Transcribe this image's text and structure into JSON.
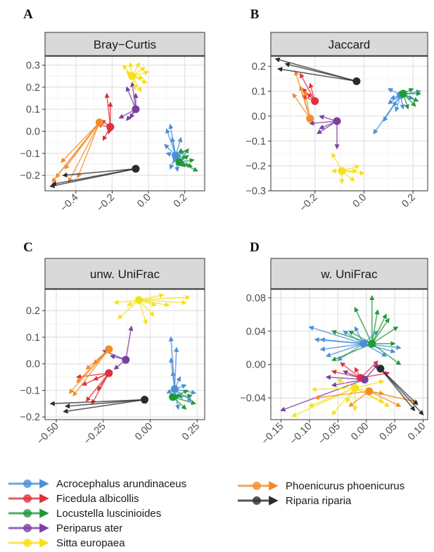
{
  "panels": [
    {
      "letter": "A",
      "strip": "Bray−Curtis",
      "xticks": [
        "−0.4",
        "−0.2",
        "0.0",
        "0.2"
      ],
      "yticks": [
        "0.3",
        "0.2",
        "0.1",
        "0.0",
        "−0.1",
        "−0.2"
      ]
    },
    {
      "letter": "B",
      "strip": "Jaccard",
      "xticks": [
        "−0.2",
        "0.0",
        "0.2"
      ],
      "yticks": [
        "0.2",
        "0.1",
        "0.0",
        "−0.1",
        "−0.2",
        "−0.3"
      ]
    },
    {
      "letter": "C",
      "strip": "unw. UniFrac",
      "xticks": [
        "−0.50",
        "−0.25",
        "0.00",
        "0.25"
      ],
      "yticks": [
        "0.2",
        "0.1",
        "0.0",
        "−0.1",
        "−0.2"
      ]
    },
    {
      "letter": "D",
      "strip": "w. UniFrac",
      "xticks": [
        "−0.15",
        "−0.10",
        "−0.05",
        "0.00",
        "0.05",
        "0.10"
      ],
      "yticks": [
        "0.08",
        "0.04",
        "0.00",
        "−0.04"
      ]
    }
  ],
  "legend": [
    {
      "name": "Acrocephalus arundinaceus",
      "color": "#4a90d9"
    },
    {
      "name": "Ficedula albicollis",
      "color": "#e0303a"
    },
    {
      "name": "Locustella luscinioides",
      "color": "#1f9a3a"
    },
    {
      "name": "Periparus ater",
      "color": "#7b3fa0"
    },
    {
      "name": "Sitta europaea",
      "color": "#f5e01a"
    },
    {
      "name": "Phoenicurus phoenicurus",
      "color": "#f28c28"
    },
    {
      "name": "Riparia riparia",
      "color": "#2b2b2b"
    }
  ],
  "chart_data": [
    {
      "type": "scatter",
      "title": "Bray−Curtis",
      "xlim": [
        -0.57,
        0.31
      ],
      "ylim": [
        -0.27,
        0.34
      ],
      "grid": true,
      "series": [
        {
          "name": "Acrocephalus arundinaceus",
          "centroid": [
            0.15,
            -0.11
          ],
          "ends": [
            [
              0.1,
              0.01
            ],
            [
              0.12,
              0.03
            ],
            [
              0.13,
              -0.03
            ],
            [
              0.09,
              -0.06
            ],
            [
              0.1,
              -0.1
            ],
            [
              0.12,
              -0.17
            ],
            [
              0.16,
              -0.18
            ],
            [
              0.2,
              -0.09
            ],
            [
              0.18,
              -0.03
            ],
            [
              0.21,
              -0.12
            ],
            [
              0.22,
              -0.16
            ],
            [
              0.14,
              -0.14
            ]
          ]
        },
        {
          "name": "Ficedula albicollis",
          "centroid": [
            -0.21,
            0.02
          ],
          "ends": [
            [
              -0.23,
              0.17
            ],
            [
              -0.21,
              0.13
            ],
            [
              -0.28,
              0.03
            ],
            [
              -0.25,
              -0.04
            ],
            [
              -0.22,
              -0.01
            ],
            [
              -0.26,
              0.05
            ]
          ]
        },
        {
          "name": "Locustella luscinioides",
          "centroid": [
            0.17,
            -0.14
          ],
          "ends": [
            [
              0.22,
              -0.08
            ],
            [
              0.25,
              -0.13
            ],
            [
              0.27,
              -0.18
            ],
            [
              0.2,
              -0.16
            ],
            [
              0.22,
              -0.11
            ],
            [
              0.18,
              -0.08
            ],
            [
              0.24,
              -0.16
            ]
          ]
        },
        {
          "name": "Periparus ater",
          "centroid": [
            -0.07,
            0.1
          ],
          "ends": [
            [
              -0.12,
              0.2
            ],
            [
              -0.09,
              0.22
            ],
            [
              -0.07,
              0.17
            ],
            [
              -0.12,
              0.05
            ],
            [
              -0.16,
              0.06
            ],
            [
              -0.1,
              0.06
            ]
          ]
        },
        {
          "name": "Sitta europaea",
          "centroid": [
            -0.09,
            0.25
          ],
          "ends": [
            [
              -0.02,
              0.29
            ],
            [
              0.0,
              0.27
            ],
            [
              -0.01,
              0.22
            ],
            [
              -0.04,
              0.18
            ],
            [
              -0.07,
              0.19
            ],
            [
              -0.12,
              0.27
            ],
            [
              -0.14,
              0.3
            ],
            [
              -0.1,
              0.31
            ],
            [
              -0.05,
              0.31
            ],
            [
              -0.03,
              0.24
            ]
          ]
        },
        {
          "name": "Phoenicurus phoenicurus",
          "centroid": [
            -0.27,
            0.04
          ],
          "ends": [
            [
              -0.53,
              -0.23
            ],
            [
              -0.51,
              -0.21
            ],
            [
              -0.46,
              -0.17
            ],
            [
              -0.44,
              -0.23
            ],
            [
              -0.39,
              -0.21
            ],
            [
              -0.48,
              -0.14
            ]
          ]
        },
        {
          "name": "Riparia riparia",
          "centroid": [
            -0.07,
            -0.17
          ],
          "ends": [
            [
              -0.54,
              -0.25
            ],
            [
              -0.53,
              -0.24
            ],
            [
              -0.47,
              -0.2
            ]
          ]
        }
      ]
    },
    {
      "type": "scatter",
      "title": "Jaccard",
      "xlim": [
        -0.38,
        0.26
      ],
      "ylim": [
        -0.3,
        0.24
      ],
      "grid": true,
      "series": [
        {
          "name": "Acrocephalus arundinaceus",
          "centroid": [
            0.15,
            0.085
          ],
          "ends": [
            [
              0.1,
              0.05
            ],
            [
              0.11,
              0.07
            ],
            [
              0.08,
              -0.02
            ],
            [
              0.04,
              -0.07
            ],
            [
              0.1,
              0.11
            ],
            [
              0.13,
              0.02
            ],
            [
              0.2,
              0.07
            ],
            [
              0.23,
              0.1
            ],
            [
              0.16,
              0.03
            ],
            [
              0.12,
              0.04
            ]
          ]
        },
        {
          "name": "Ficedula albicollis",
          "centroid": [
            -0.2,
            0.06
          ],
          "ends": [
            [
              -0.26,
              0.17
            ],
            [
              -0.22,
              0.13
            ],
            [
              -0.25,
              0.11
            ],
            [
              -0.23,
              0.09
            ],
            [
              -0.25,
              0.08
            ]
          ]
        },
        {
          "name": "Locustella luscinioides",
          "centroid": [
            0.16,
            0.09
          ],
          "ends": [
            [
              0.21,
              0.04
            ],
            [
              0.23,
              0.09
            ],
            [
              0.2,
              0.11
            ],
            [
              0.18,
              0.03
            ],
            [
              0.22,
              0.06
            ]
          ]
        },
        {
          "name": "Periparus ater",
          "centroid": [
            -0.11,
            -0.02
          ],
          "ends": [
            [
              -0.11,
              -0.13
            ],
            [
              -0.18,
              0.0
            ],
            [
              -0.18,
              -0.05
            ],
            [
              -0.22,
              -0.03
            ],
            [
              -0.19,
              -0.07
            ]
          ]
        },
        {
          "name": "Sitta europaea",
          "centroid": [
            -0.09,
            -0.22
          ],
          "ends": [
            [
              -0.13,
              -0.15
            ],
            [
              -0.02,
              -0.2
            ],
            [
              0.0,
              -0.23
            ],
            [
              -0.04,
              -0.26
            ],
            [
              -0.13,
              -0.22
            ],
            [
              -0.09,
              -0.27
            ],
            [
              -0.03,
              -0.22
            ]
          ]
        },
        {
          "name": "Phoenicurus phoenicurus",
          "centroid": [
            -0.22,
            -0.01
          ],
          "ends": [
            [
              -0.28,
              0.18
            ],
            [
              -0.26,
              0.12
            ],
            [
              -0.24,
              0.1
            ],
            [
              -0.29,
              0.09
            ]
          ]
        },
        {
          "name": "Riparia riparia",
          "centroid": [
            -0.03,
            0.14
          ],
          "ends": [
            [
              -0.36,
              0.23
            ],
            [
              -0.35,
              0.19
            ],
            [
              -0.32,
              0.21
            ]
          ]
        }
      ]
    },
    {
      "type": "scatter",
      "title": "unw. UniFrac",
      "xlim": [
        -0.56,
        0.29
      ],
      "ylim": [
        -0.21,
        0.28
      ],
      "grid": true,
      "series": [
        {
          "name": "Acrocephalus arundinaceus",
          "centroid": [
            0.13,
            -0.095
          ],
          "ends": [
            [
              0.11,
              0.1
            ],
            [
              0.14,
              0.06
            ],
            [
              0.11,
              0.02
            ],
            [
              0.12,
              -0.03
            ],
            [
              0.16,
              -0.05
            ],
            [
              0.19,
              -0.08
            ],
            [
              0.24,
              -0.11
            ],
            [
              0.17,
              -0.13
            ],
            [
              0.15,
              -0.17
            ],
            [
              0.22,
              -0.14
            ],
            [
              0.09,
              -0.11
            ]
          ]
        },
        {
          "name": "Ficedula albicollis",
          "centroid": [
            -0.22,
            -0.035
          ],
          "ends": [
            [
              -0.3,
              -0.06
            ],
            [
              -0.36,
              -0.08
            ],
            [
              -0.39,
              -0.05
            ],
            [
              -0.34,
              -0.14
            ],
            [
              -0.31,
              -0.15
            ],
            [
              -0.28,
              -0.1
            ]
          ]
        },
        {
          "name": "Locustella luscinioides",
          "centroid": [
            0.12,
            -0.125
          ],
          "ends": [
            [
              0.2,
              -0.1
            ],
            [
              0.24,
              -0.15
            ],
            [
              0.19,
              -0.17
            ],
            [
              0.16,
              -0.12
            ],
            [
              0.22,
              -0.12
            ]
          ]
        },
        {
          "name": "Periparus ater",
          "centroid": [
            -0.13,
            0.015
          ],
          "ends": [
            [
              -0.1,
              0.14
            ],
            [
              -0.21,
              0.03
            ],
            [
              -0.25,
              0.05
            ],
            [
              -0.19,
              -0.02
            ]
          ]
        },
        {
          "name": "Sitta europaea",
          "centroid": [
            -0.06,
            0.24
          ],
          "ends": [
            [
              -0.19,
              0.23
            ],
            [
              -0.17,
              0.17
            ],
            [
              -0.02,
              0.15
            ],
            [
              0.02,
              0.18
            ],
            [
              0.19,
              0.23
            ],
            [
              0.21,
              0.25
            ],
            [
              0.1,
              0.22
            ],
            [
              -0.12,
              0.22
            ],
            [
              0.03,
              0.22
            ],
            [
              0.07,
              0.26
            ]
          ]
        },
        {
          "name": "Phoenicurus phoenicurus",
          "centroid": [
            -0.22,
            0.055
          ],
          "ends": [
            [
              -0.34,
              -0.02
            ],
            [
              -0.39,
              -0.07
            ],
            [
              -0.43,
              -0.11
            ],
            [
              -0.41,
              -0.12
            ],
            [
              -0.3,
              0.0
            ]
          ]
        },
        {
          "name": "Riparia riparia",
          "centroid": [
            -0.03,
            -0.135
          ],
          "ends": [
            [
              -0.53,
              -0.15
            ],
            [
              -0.46,
              -0.18
            ],
            [
              -0.45,
              -0.16
            ]
          ]
        }
      ]
    },
    {
      "type": "scatter",
      "title": "w. UniFrac",
      "xlim": [
        -0.168,
        0.108
      ],
      "ylim": [
        -0.066,
        0.09
      ],
      "grid": true,
      "series": [
        {
          "name": "Acrocephalus arundinaceus",
          "centroid": [
            -0.005,
            0.025
          ],
          "ends": [
            [
              -0.1,
              0.045
            ],
            [
              -0.09,
              0.03
            ],
            [
              -0.08,
              0.018
            ],
            [
              -0.07,
              0.01
            ],
            [
              -0.04,
              0.04
            ],
            [
              -0.02,
              0.045
            ],
            [
              0.02,
              0.04
            ],
            [
              0.035,
              0.01
            ],
            [
              0.05,
              0.015
            ],
            [
              0.06,
              0.02
            ],
            [
              -0.05,
              0.005
            ],
            [
              -0.08,
              0.03
            ]
          ]
        },
        {
          "name": "Ficedula albicollis",
          "centroid": [
            -0.01,
            -0.016
          ],
          "ends": [
            [
              -0.06,
              -0.008
            ],
            [
              -0.045,
              0.002
            ],
            [
              -0.02,
              -0.004
            ],
            [
              0.02,
              0.004
            ],
            [
              0.04,
              -0.01
            ]
          ]
        },
        {
          "name": "Locustella luscinioides",
          "centroid": [
            0.01,
            0.025
          ],
          "ends": [
            [
              0.01,
              0.082
            ],
            [
              -0.02,
              0.068
            ],
            [
              -0.03,
              0.04
            ],
            [
              0.04,
              0.055
            ],
            [
              0.05,
              0.025
            ],
            [
              0.06,
              0.0
            ],
            [
              0.055,
              0.045
            ],
            [
              0.035,
              0.06
            ],
            [
              -0.06,
              0.005
            ],
            [
              0.02,
              0.065
            ],
            [
              -0.06,
              0.04
            ]
          ]
        },
        {
          "name": "Periparus ater",
          "centroid": [
            -0.003,
            -0.018
          ],
          "ends": [
            [
              -0.15,
              -0.055
            ],
            [
              -0.06,
              -0.025
            ],
            [
              -0.07,
              -0.015
            ],
            [
              0.02,
              0.0
            ],
            [
              -0.04,
              -0.008
            ]
          ]
        },
        {
          "name": "Sitta europaea",
          "centroid": [
            -0.02,
            -0.028
          ],
          "ends": [
            [
              -0.13,
              -0.062
            ],
            [
              -0.1,
              -0.05
            ],
            [
              -0.095,
              -0.03
            ],
            [
              -0.05,
              -0.018
            ],
            [
              -0.035,
              -0.045
            ],
            [
              0.09,
              -0.045
            ],
            [
              0.03,
              -0.045
            ],
            [
              0.04,
              -0.05
            ],
            [
              -0.06,
              -0.06
            ],
            [
              -0.02,
              -0.055
            ],
            [
              0.03,
              -0.02
            ]
          ]
        },
        {
          "name": "Phoenicurus phoenicurus",
          "centroid": [
            0.005,
            -0.032
          ],
          "ends": [
            [
              -0.09,
              -0.04
            ],
            [
              0.03,
              -0.035
            ],
            [
              0.06,
              -0.05
            ],
            [
              0.09,
              -0.045
            ],
            [
              -0.03,
              -0.05
            ]
          ]
        },
        {
          "name": "Riparia riparia",
          "centroid": [
            0.025,
            -0.005
          ],
          "ends": [
            [
              0.1,
              -0.06
            ],
            [
              0.085,
              -0.055
            ],
            [
              0.09,
              -0.048
            ]
          ]
        }
      ]
    }
  ]
}
